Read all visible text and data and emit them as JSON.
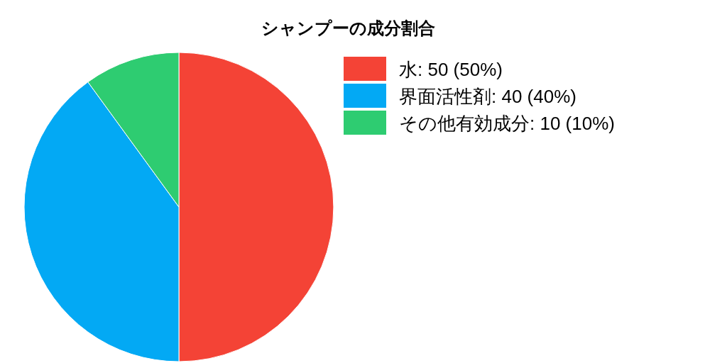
{
  "chart_data": {
    "type": "pie",
    "title": "シャンプーの成分割合",
    "categories": [
      "水",
      "界面活性剤",
      "その他有効成分"
    ],
    "values": [
      50,
      40,
      10
    ],
    "value_labels": [
      "50 (50%)",
      "40 (40%)",
      "10 (10%)"
    ],
    "colors": [
      "#f44336",
      "#03a9f4",
      "#2ecc71"
    ],
    "legend": "top right"
  }
}
